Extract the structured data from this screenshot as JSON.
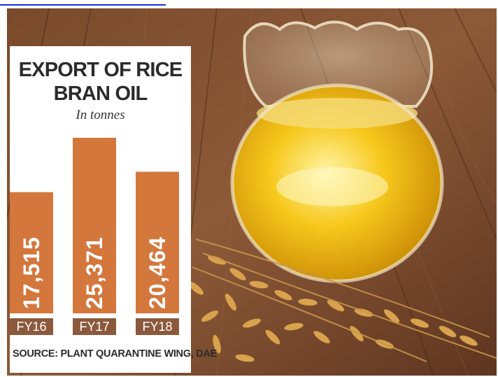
{
  "colors": {
    "bar": "#d4773d",
    "label_box": "#8b5a3c",
    "panel": "#ffffff",
    "text": "#2b2b2b"
  },
  "chart_data": {
    "type": "bar",
    "title": "EXPORT OF RICE BRAN OIL",
    "subtitle": "In tonnes",
    "categories": [
      "FY16",
      "FY17",
      "FY18"
    ],
    "values": [
      17515,
      25371,
      20464
    ],
    "value_labels": [
      "17,515",
      "25,371",
      "20,464"
    ],
    "ylim": [
      0,
      28000
    ],
    "grid": false,
    "source": "SOURCE: PLANT QUARANTINE WING, DAE"
  }
}
